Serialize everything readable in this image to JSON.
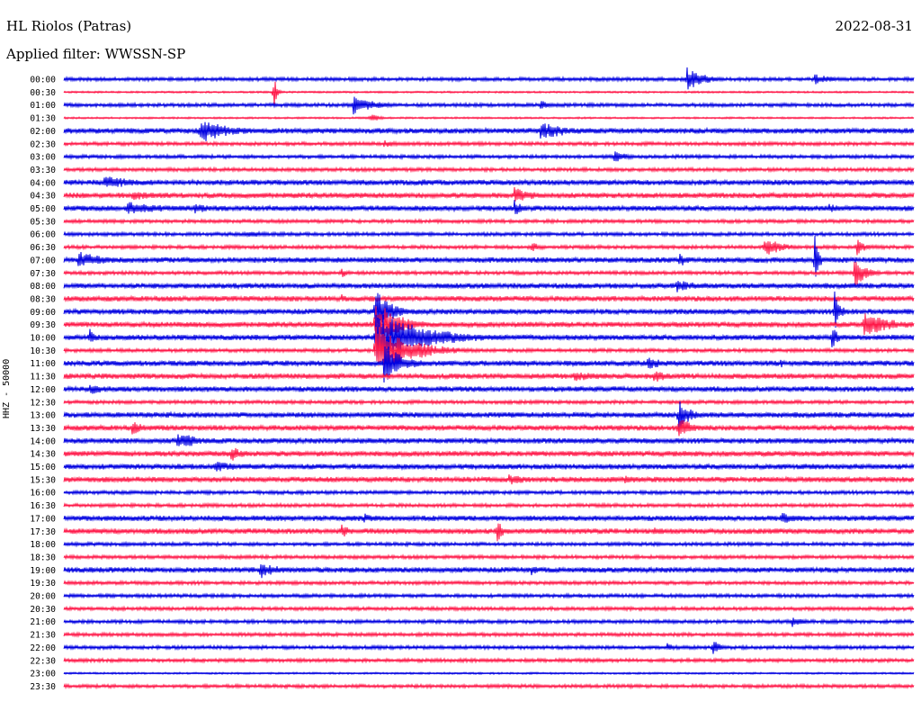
{
  "header": {
    "station": "HL Riolos (Patras)",
    "date": "2022-08-31",
    "filter": "Applied filter: WWSSN-SP"
  },
  "channel_label": "HHZ - 50000",
  "colors": {
    "trace_a": "#0000e0",
    "trace_b": "#ff1a4a",
    "text": "#000000"
  },
  "chart_data": {
    "type": "line",
    "title": "HL Riolos (Patras)",
    "subtitle": "Applied filter: WWSSN-SP",
    "ylabel": "HHZ - 50000",
    "time_labels": [
      "00:00",
      "00:30",
      "01:00",
      "01:30",
      "02:00",
      "02:30",
      "03:00",
      "03:30",
      "04:00",
      "04:30",
      "05:00",
      "05:30",
      "06:00",
      "06:30",
      "07:00",
      "07:30",
      "08:00",
      "08:30",
      "09:00",
      "09:30",
      "10:00",
      "10:30",
      "11:00",
      "11:30",
      "12:00",
      "12:30",
      "13:00",
      "13:30",
      "14:00",
      "14:30",
      "15:00",
      "15:30",
      "16:00",
      "16:30",
      "17:00",
      "17:30",
      "18:00",
      "18:30",
      "19:00",
      "19:30",
      "20:00",
      "20:30",
      "21:00",
      "21:30",
      "22:00",
      "22:30",
      "23:00",
      "23:30"
    ],
    "row_minutes": 30,
    "noise_level": [
      2,
      1,
      2,
      1,
      3,
      2,
      2,
      2,
      3,
      3,
      3,
      2,
      2,
      2,
      3,
      2,
      3,
      3,
      3,
      3,
      3,
      2,
      3,
      3,
      3,
      2,
      3,
      3,
      3,
      3,
      3,
      3,
      2,
      2,
      3,
      3,
      2,
      2,
      3,
      2,
      2,
      2,
      2,
      2,
      2,
      2,
      1,
      2
    ],
    "events": [
      {
        "row": 0,
        "minute": 22.0,
        "amplitude": 14,
        "duration": 1.2
      },
      {
        "row": 0,
        "minute": 26.5,
        "amplitude": 6,
        "duration": 1.5
      },
      {
        "row": 1,
        "minute": 7.4,
        "amplitude": 26,
        "duration": 0.2
      },
      {
        "row": 2,
        "minute": 10.2,
        "amplitude": 12,
        "duration": 1.4
      },
      {
        "row": 2,
        "minute": 16.8,
        "amplitude": 5,
        "duration": 1.2
      },
      {
        "row": 3,
        "minute": 10.8,
        "amplitude": 6,
        "duration": 0.6
      },
      {
        "row": 4,
        "minute": 4.8,
        "amplitude": 14,
        "duration": 2.2
      },
      {
        "row": 4,
        "minute": 16.8,
        "amplitude": 10,
        "duration": 2.4
      },
      {
        "row": 5,
        "minute": 11.3,
        "amplitude": 4,
        "duration": 1.8
      },
      {
        "row": 6,
        "minute": 19.4,
        "amplitude": 7,
        "duration": 1.0
      },
      {
        "row": 8,
        "minute": 1.4,
        "amplitude": 8,
        "duration": 2.5
      },
      {
        "row": 8,
        "minute": 12.6,
        "amplitude": 5,
        "duration": 1.0
      },
      {
        "row": 9,
        "minute": 2.4,
        "amplitude": 6,
        "duration": 2.0
      },
      {
        "row": 9,
        "minute": 15.9,
        "amplitude": 10,
        "duration": 1.4
      },
      {
        "row": 10,
        "minute": 2.2,
        "amplitude": 8,
        "duration": 3.0
      },
      {
        "row": 10,
        "minute": 4.6,
        "amplitude": 6,
        "duration": 1.5
      },
      {
        "row": 10,
        "minute": 15.9,
        "amplitude": 10,
        "duration": 0.6
      },
      {
        "row": 10,
        "minute": 27.0,
        "amplitude": 6,
        "duration": 0.8
      },
      {
        "row": 12,
        "minute": 6.4,
        "amplitude": 4,
        "duration": 2.0
      },
      {
        "row": 13,
        "minute": 16.5,
        "amplitude": 6,
        "duration": 0.8
      },
      {
        "row": 13,
        "minute": 24.7,
        "amplitude": 12,
        "duration": 1.3
      },
      {
        "row": 13,
        "minute": 28.0,
        "amplitude": 10,
        "duration": 0.6
      },
      {
        "row": 14,
        "minute": 0.5,
        "amplitude": 10,
        "duration": 2.0
      },
      {
        "row": 14,
        "minute": 21.7,
        "amplitude": 8,
        "duration": 1.0
      },
      {
        "row": 14,
        "minute": 26.5,
        "amplitude": 30,
        "duration": 0.3
      },
      {
        "row": 15,
        "minute": 9.8,
        "amplitude": 6,
        "duration": 0.5
      },
      {
        "row": 15,
        "minute": 27.9,
        "amplitude": 18,
        "duration": 0.8
      },
      {
        "row": 16,
        "minute": 21.6,
        "amplitude": 8,
        "duration": 1.6
      },
      {
        "row": 17,
        "minute": 9.8,
        "amplitude": 6,
        "duration": 0.4
      },
      {
        "row": 18,
        "minute": 11.0,
        "amplitude": 28,
        "duration": 1.0
      },
      {
        "row": 18,
        "minute": 27.2,
        "amplitude": 24,
        "duration": 0.4
      },
      {
        "row": 19,
        "minute": 11.0,
        "amplitude": 28,
        "duration": 1.6
      },
      {
        "row": 19,
        "minute": 28.2,
        "amplitude": 14,
        "duration": 2.2
      },
      {
        "row": 20,
        "minute": 11.0,
        "amplitude": 30,
        "duration": 3.5
      },
      {
        "row": 20,
        "minute": 0.9,
        "amplitude": 12,
        "duration": 0.4
      },
      {
        "row": 20,
        "minute": 27.1,
        "amplitude": 18,
        "duration": 0.4
      },
      {
        "row": 21,
        "minute": 11.0,
        "amplitude": 30,
        "duration": 2.5
      },
      {
        "row": 22,
        "minute": 11.3,
        "amplitude": 24,
        "duration": 1.3
      },
      {
        "row": 22,
        "minute": 20.6,
        "amplitude": 8,
        "duration": 1.2
      },
      {
        "row": 22,
        "minute": 25.3,
        "amplitude": 6,
        "duration": 0.3
      },
      {
        "row": 23,
        "minute": 18.0,
        "amplitude": 6,
        "duration": 3.0
      },
      {
        "row": 23,
        "minute": 20.8,
        "amplitude": 8,
        "duration": 1.2
      },
      {
        "row": 24,
        "minute": 0.9,
        "amplitude": 8,
        "duration": 1.0
      },
      {
        "row": 26,
        "minute": 21.7,
        "amplitude": 18,
        "duration": 0.8
      },
      {
        "row": 27,
        "minute": 21.7,
        "amplitude": 16,
        "duration": 0.8
      },
      {
        "row": 27,
        "minute": 2.4,
        "amplitude": 8,
        "duration": 1.0
      },
      {
        "row": 28,
        "minute": 4.0,
        "amplitude": 10,
        "duration": 1.8
      },
      {
        "row": 29,
        "minute": 5.9,
        "amplitude": 10,
        "duration": 0.8
      },
      {
        "row": 30,
        "minute": 5.3,
        "amplitude": 6,
        "duration": 2.5
      },
      {
        "row": 31,
        "minute": 15.7,
        "amplitude": 6,
        "duration": 2.0
      },
      {
        "row": 31,
        "minute": 19.8,
        "amplitude": 6,
        "duration": 1.5
      },
      {
        "row": 34,
        "minute": 10.6,
        "amplitude": 6,
        "duration": 0.8
      },
      {
        "row": 34,
        "minute": 25.3,
        "amplitude": 7,
        "duration": 1.2
      },
      {
        "row": 35,
        "minute": 9.8,
        "amplitude": 12,
        "duration": 0.4
      },
      {
        "row": 35,
        "minute": 15.3,
        "amplitude": 18,
        "duration": 0.4
      },
      {
        "row": 35,
        "minute": 20.8,
        "amplitude": 6,
        "duration": 0.3
      },
      {
        "row": 38,
        "minute": 6.9,
        "amplitude": 10,
        "duration": 1.5
      },
      {
        "row": 38,
        "minute": 16.5,
        "amplitude": 7,
        "duration": 0.5
      },
      {
        "row": 42,
        "minute": 25.7,
        "amplitude": 7,
        "duration": 0.8
      },
      {
        "row": 44,
        "minute": 22.9,
        "amplitude": 10,
        "duration": 0.5
      },
      {
        "row": 44,
        "minute": 21.3,
        "amplitude": 6,
        "duration": 0.4
      }
    ]
  }
}
